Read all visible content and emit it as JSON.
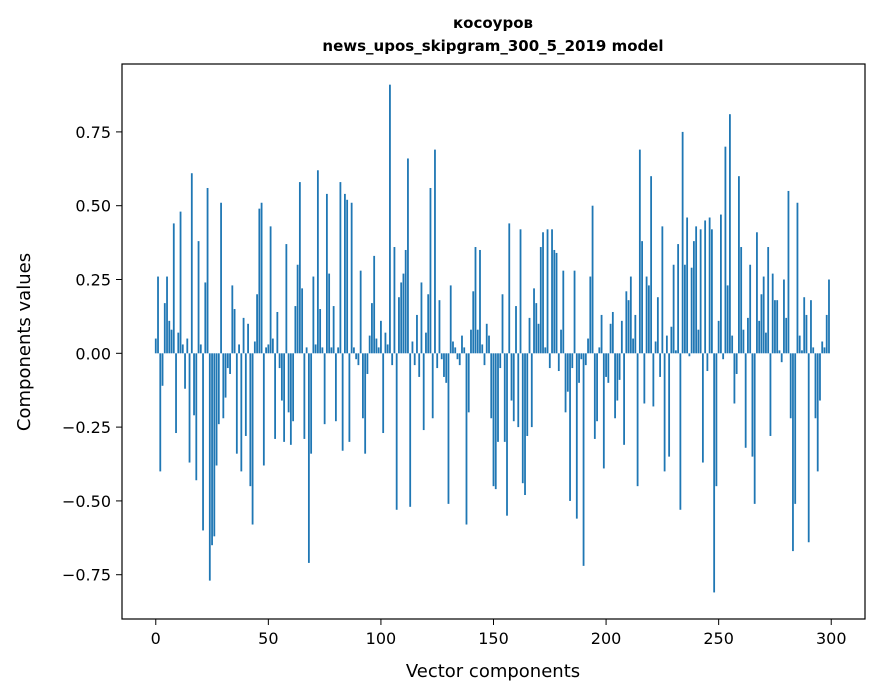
{
  "chart_data": {
    "type": "bar",
    "title": "косоуров",
    "subtitle": "news_upos_skipgram_300_5_2019 model",
    "xlabel": "Vector components",
    "ylabel": "Components values",
    "xlim": [
      -15,
      315
    ],
    "ylim": [
      -0.9,
      0.98
    ],
    "xticks": [
      0,
      50,
      100,
      150,
      200,
      250,
      300
    ],
    "yticks": [
      -0.75,
      -0.5,
      -0.25,
      0.0,
      0.25,
      0.5,
      0.75
    ],
    "ytick_labels": [
      "−0.75",
      "−0.50",
      "−0.25",
      "0.00",
      "0.25",
      "0.50",
      "0.75"
    ],
    "bar_color": "#1f77b4",
    "grid": false,
    "values": [
      0.05,
      0.26,
      -0.4,
      -0.11,
      0.17,
      0.26,
      0.11,
      0.08,
      0.44,
      -0.27,
      0.07,
      0.48,
      0.03,
      -0.12,
      0.05,
      -0.37,
      0.61,
      -0.21,
      -0.43,
      0.38,
      0.03,
      -0.6,
      0.24,
      0.56,
      -0.77,
      -0.65,
      -0.62,
      -0.38,
      -0.24,
      0.51,
      -0.22,
      -0.15,
      -0.05,
      -0.07,
      0.23,
      0.15,
      -0.34,
      0.03,
      -0.4,
      0.12,
      -0.28,
      0.1,
      -0.45,
      -0.58,
      0.04,
      0.2,
      0.49,
      0.51,
      -0.38,
      0.02,
      0.03,
      0.43,
      0.05,
      -0.29,
      0.14,
      -0.05,
      -0.16,
      -0.3,
      0.37,
      -0.2,
      -0.31,
      -0.23,
      0.16,
      0.3,
      0.58,
      0.22,
      -0.29,
      0.02,
      -0.71,
      -0.34,
      0.26,
      0.03,
      0.62,
      0.15,
      0.02,
      -0.24,
      0.54,
      0.27,
      0.02,
      0.16,
      -0.23,
      0.02,
      0.58,
      -0.33,
      0.54,
      0.52,
      -0.3,
      0.51,
      0.02,
      -0.02,
      -0.04,
      0.28,
      -0.22,
      -0.34,
      -0.07,
      0.06,
      0.17,
      0.33,
      0.05,
      0.02,
      0.11,
      -0.27,
      0.07,
      0.03,
      0.91,
      -0.04,
      0.36,
      -0.53,
      0.19,
      0.24,
      0.27,
      0.35,
      0.66,
      -0.52,
      0.04,
      -0.04,
      0.13,
      -0.08,
      0.24,
      -0.26,
      0.07,
      0.2,
      0.56,
      -0.22,
      0.69,
      -0.05,
      0.18,
      -0.02,
      -0.08,
      -0.1,
      -0.51,
      0.23,
      0.04,
      0.02,
      -0.02,
      -0.04,
      0.06,
      0.02,
      -0.58,
      -0.2,
      0.08,
      0.21,
      0.36,
      0.08,
      0.35,
      0.03,
      -0.04,
      0.1,
      0.06,
      -0.22,
      -0.45,
      -0.46,
      -0.3,
      -0.05,
      0.2,
      -0.3,
      -0.55,
      0.44,
      -0.16,
      -0.23,
      0.16,
      -0.25,
      0.42,
      -0.44,
      -0.48,
      -0.28,
      0.12,
      -0.25,
      0.22,
      0.17,
      0.1,
      0.36,
      0.41,
      0.02,
      0.42,
      -0.05,
      0.42,
      0.35,
      0.34,
      -0.06,
      0.08,
      0.28,
      -0.2,
      -0.13,
      -0.5,
      -0.05,
      0.28,
      -0.56,
      -0.1,
      -0.02,
      -0.72,
      -0.04,
      0.05,
      0.26,
      0.5,
      -0.29,
      -0.23,
      0.02,
      0.13,
      -0.39,
      -0.08,
      -0.1,
      0.1,
      0.14,
      -0.22,
      -0.16,
      -0.09,
      0.11,
      -0.31,
      0.21,
      0.18,
      0.26,
      0.05,
      0.13,
      -0.45,
      0.69,
      0.38,
      -0.17,
      0.26,
      0.23,
      0.6,
      -0.18,
      0.04,
      0.19,
      -0.08,
      0.43,
      -0.4,
      0.06,
      -0.35,
      0.09,
      0.3,
      0.01,
      0.37,
      -0.53,
      0.75,
      0.3,
      0.46,
      -0.01,
      0.29,
      0.38,
      0.43,
      0.08,
      0.42,
      -0.37,
      0.45,
      -0.06,
      0.46,
      0.42,
      -0.81,
      -0.45,
      0.11,
      0.47,
      -0.02,
      0.7,
      0.23,
      0.81,
      0.06,
      -0.17,
      -0.07,
      0.6,
      0.36,
      0.08,
      -0.32,
      0.12,
      0.3,
      -0.35,
      -0.51,
      0.41,
      0.11,
      0.2,
      0.26,
      0.07,
      0.36,
      -0.28,
      0.27,
      0.18,
      0.18,
      0.01,
      -0.03,
      0.25,
      0.12,
      0.55,
      -0.22,
      -0.67,
      -0.51,
      0.51,
      0.06,
      0.01,
      0.19,
      0.13,
      -0.64,
      0.18,
      0.02,
      -0.22,
      -0.4,
      -0.16,
      0.04,
      0.02,
      0.13,
      0.25
    ]
  }
}
